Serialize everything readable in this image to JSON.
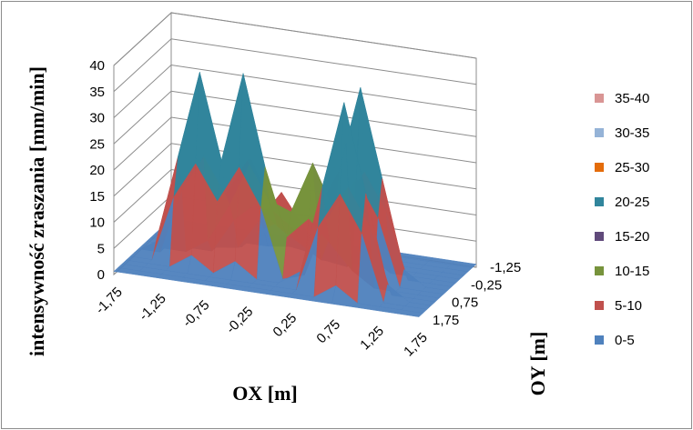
{
  "chart_data": {
    "type": "surface",
    "title": "",
    "zlabel": "intensywność zraszania [mm/min]",
    "xlabel": "OX [m]",
    "ylabel": "OY [m]",
    "zlim": [
      0,
      40
    ],
    "z_ticks": [
      "0",
      "5",
      "10",
      "15",
      "20",
      "25",
      "30",
      "35",
      "40"
    ],
    "x_ticks": [
      "-1,75",
      "-1,25",
      "-0,75",
      "-0,25",
      "0,25",
      "0,75",
      "1,25",
      "1,75"
    ],
    "y_ticks": [
      "-1,25",
      "-0,25",
      "0,75",
      "1,75"
    ],
    "x": [
      -1.75,
      -1.5,
      -1.25,
      -1.0,
      -0.75,
      -0.5,
      -0.25,
      0,
      0.25,
      0.5,
      0.75,
      1.0,
      1.25,
      1.5,
      1.75
    ],
    "y": [
      -1.75,
      -1.5,
      -1.25,
      -1.0,
      -0.75,
      -0.5,
      -0.25,
      0,
      0.25,
      0.5,
      0.75,
      1.0,
      1.25,
      1.5,
      1.75
    ],
    "peaks": [
      {
        "x": -1.0,
        "y": -0.5,
        "height": 37
      },
      {
        "x": -0.5,
        "y": -0.5,
        "height": 38
      },
      {
        "x": 0.75,
        "y": 0.0,
        "height": 37
      },
      {
        "x": 0.75,
        "y": -1.0,
        "height": 37
      },
      {
        "x": 0.25,
        "y": -0.25,
        "height": 22
      },
      {
        "x": -0.25,
        "y": 0.5,
        "height": 13
      },
      {
        "x": -0.5,
        "y": 0.0,
        "height": 20
      }
    ],
    "grid": true,
    "legend_position": "right",
    "legend": [
      {
        "label": "35-40",
        "color": "#d99594"
      },
      {
        "label": "30-35",
        "color": "#95b3d7"
      },
      {
        "label": "25-30",
        "color": "#e46c0a"
      },
      {
        "label": "20-25",
        "color": "#31859c"
      },
      {
        "label": "15-20",
        "color": "#604a7b"
      },
      {
        "label": "10-15",
        "color": "#77933c"
      },
      {
        "label": "5-10",
        "color": "#c0504d"
      },
      {
        "label": "0-5",
        "color": "#4f81bd"
      }
    ]
  }
}
